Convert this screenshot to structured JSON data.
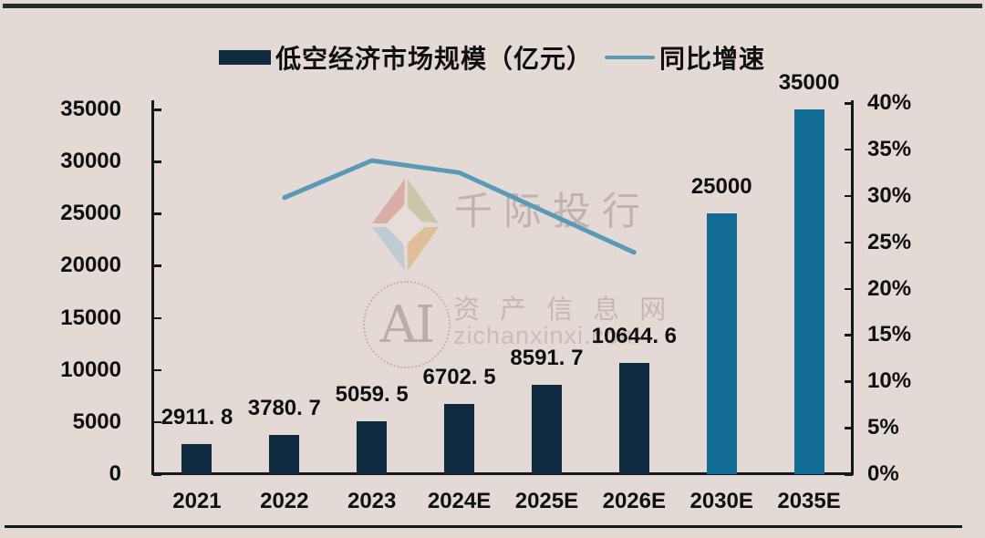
{
  "legend": [
    {
      "label": "低空经济市场规模（亿元）",
      "swatch": "bar"
    },
    {
      "label": "同比增速",
      "swatch": "line"
    }
  ],
  "watermark": {
    "brand": "千际投行",
    "ai_monogram": "AI",
    "site_name": "资 产 信 息 网",
    "site_url": "zichanxinxi.com"
  },
  "colors": {
    "background": "#e3dad6",
    "bar_navy": "#0f2a3e",
    "bar_teal": "#116b94",
    "growth_line": "#5b9ab4",
    "axis": "#15181a",
    "text": "#101010"
  },
  "chart_data": {
    "type": "bar+line",
    "categories": [
      "2021",
      "2022",
      "2023",
      "2024E",
      "2025E",
      "2026E",
      "2030E",
      "2035E"
    ],
    "series": [
      {
        "name": "低空经济市场规模（亿元）",
        "type": "bar",
        "axis": "left",
        "values": [
          2911.8,
          3780.7,
          5059.5,
          6702.5,
          8591.7,
          10644.6,
          25000,
          35000
        ],
        "value_labels": [
          "2911. 8",
          "3780. 7",
          "5059. 5",
          "6702. 5",
          "8591. 7",
          "10644. 6",
          "25000",
          "35000"
        ],
        "colors": [
          "#0f2a3e",
          "#0f2a3e",
          "#0f2a3e",
          "#0f2a3e",
          "#0f2a3e",
          "#0f2a3e",
          "#116b94",
          "#116b94"
        ]
      },
      {
        "name": "同比增速",
        "type": "line",
        "axis": "right",
        "values": [
          null,
          29.8,
          33.8,
          32.5,
          28.2,
          23.9,
          null,
          null
        ]
      }
    ],
    "left_axis": {
      "min": 0,
      "max": 35000,
      "step": 5000,
      "tick_labels": [
        "0",
        "5000",
        "10000",
        "15000",
        "20000",
        "25000",
        "30000",
        "35000"
      ]
    },
    "right_axis": {
      "min": 0,
      "max": 40,
      "step": 5,
      "tick_labels": [
        "0%",
        "5%",
        "10%",
        "15%",
        "20%",
        "25%",
        "30%",
        "35%",
        "40%"
      ]
    },
    "title": "",
    "grid": false,
    "legend_position": "top"
  }
}
